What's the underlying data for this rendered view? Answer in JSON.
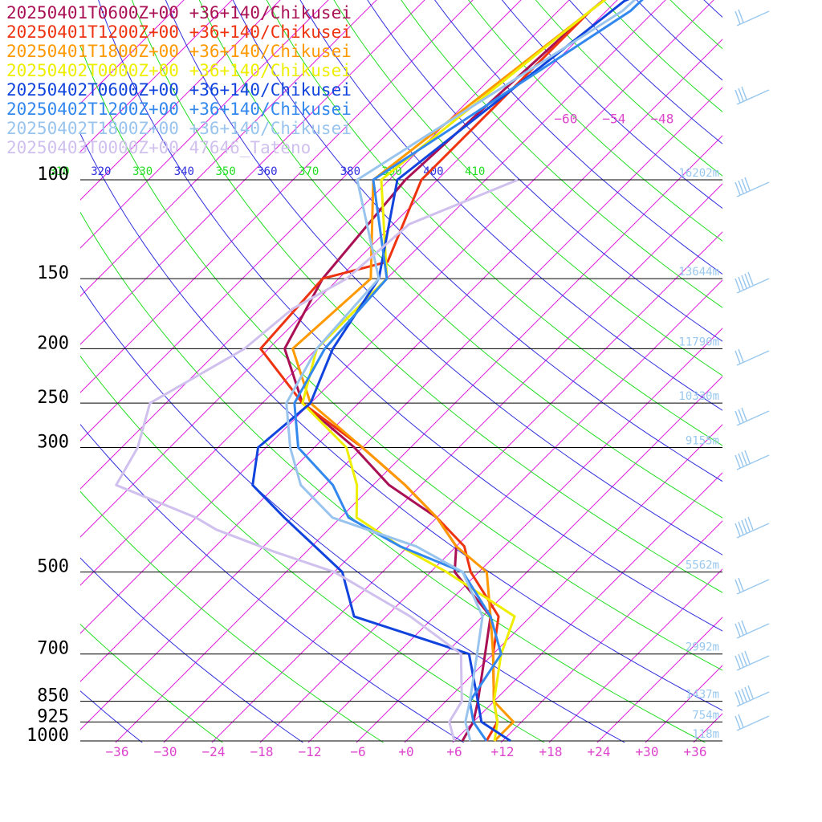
{
  "chart_data": {
    "type": "line",
    "title": "",
    "pressure_levels": [
      100,
      150,
      200,
      250,
      300,
      500,
      700,
      850,
      925,
      1000
    ],
    "temperature_ticks": [
      "−36",
      "−30",
      "−24",
      "−18",
      "−12",
      "−6",
      "+0",
      "+6",
      "+12",
      "+18",
      "+24",
      "+30",
      "+36"
    ],
    "temperature_tick_values": [
      -36,
      -30,
      -24,
      -18,
      -12,
      -6,
      0,
      6,
      12,
      18,
      24,
      30,
      36
    ],
    "upper_temperature_labels": [
      "−60",
      "−54",
      "−48"
    ],
    "theta_labels": [
      "310",
      "320",
      "330",
      "340",
      "350",
      "360",
      "370",
      "380",
      "390",
      "400",
      "410"
    ],
    "height_labels": [
      "16202m",
      "13644m",
      "11790m",
      "10330m",
      "9155m",
      "5562m",
      "2992m",
      "1437m",
      "754m",
      "118m"
    ],
    "height_label_pressures": [
      100,
      150,
      200,
      250,
      300,
      500,
      700,
      850,
      925,
      1000
    ],
    "colors": {
      "isotherm": "#dd22dd",
      "dry_adiabat_blue": "#3030dd",
      "dry_adiabat_green": "#22dd22",
      "isobar": "#000000",
      "height_label": "#9ac8ee",
      "tick_label": "#dd44cc"
    },
    "series": [
      {
        "name": "20250401T0600Z+00 +36+140/Chikusei",
        "color": "#aa1155",
        "points": [
          [
            16,
            -62
          ],
          [
            24,
            -63
          ],
          [
            50,
            -68
          ],
          [
            100,
            -70
          ],
          [
            150,
            -68
          ],
          [
            200,
            -64
          ],
          [
            250,
            -55
          ],
          [
            300,
            -43
          ],
          [
            350,
            -34
          ],
          [
            400,
            -24
          ],
          [
            450,
            -18
          ],
          [
            500,
            -15
          ],
          [
            600,
            -5
          ],
          [
            700,
            -1
          ],
          [
            850,
            4
          ],
          [
            925,
            6
          ],
          [
            1000,
            7
          ]
        ]
      },
      {
        "name": "20250401T1200Z+00 +36+140/Chikusei",
        "color": "#ee3311",
        "points": [
          [
            16,
            -62
          ],
          [
            25,
            -62
          ],
          [
            50,
            -68
          ],
          [
            100,
            -68
          ],
          [
            140,
            -62
          ],
          [
            150,
            -68
          ],
          [
            200,
            -67
          ],
          [
            250,
            -55
          ],
          [
            300,
            -42
          ],
          [
            350,
            -32
          ],
          [
            400,
            -24
          ],
          [
            450,
            -17
          ],
          [
            500,
            -13
          ],
          [
            600,
            -4
          ],
          [
            700,
            0
          ],
          [
            850,
            6
          ],
          [
            925,
            9
          ],
          [
            1000,
            10
          ]
        ]
      },
      {
        "name": "20250401T1800Z+00 +36+140/Chikusei",
        "color": "#ff9900",
        "points": [
          [
            16,
            -62
          ],
          [
            26,
            -62
          ],
          [
            50,
            -68
          ],
          [
            100,
            -74
          ],
          [
            150,
            -62
          ],
          [
            200,
            -63
          ],
          [
            250,
            -54
          ],
          [
            300,
            -42
          ],
          [
            350,
            -32
          ],
          [
            400,
            -24
          ],
          [
            450,
            -18
          ],
          [
            500,
            -11
          ],
          [
            600,
            -5
          ],
          [
            700,
            0
          ],
          [
            850,
            6
          ],
          [
            925,
            11
          ],
          [
            1000,
            11
          ]
        ]
      },
      {
        "name": "20250402T0000Z+00 +36+140/Chikusei",
        "color": "#eeee00",
        "points": [
          [
            16,
            -62
          ],
          [
            26,
            -62
          ],
          [
            50,
            -68
          ],
          [
            100,
            -73
          ],
          [
            150,
            -60
          ],
          [
            200,
            -60
          ],
          [
            250,
            -55
          ],
          [
            300,
            -44
          ],
          [
            350,
            -38
          ],
          [
            400,
            -34
          ],
          [
            450,
            -25
          ],
          [
            500,
            -16
          ],
          [
            600,
            -2
          ],
          [
            700,
            1
          ],
          [
            850,
            6
          ],
          [
            925,
            9
          ],
          [
            1000,
            11
          ]
        ]
      },
      {
        "name": "20250402T0600Z+00 +36+140/Chikusei",
        "color": "#1144dd",
        "points": [
          [
            16,
            -62
          ],
          [
            25,
            -60
          ],
          [
            40,
            -58
          ],
          [
            48,
            -65
          ],
          [
            100,
            -71
          ],
          [
            150,
            -61
          ],
          [
            200,
            -58
          ],
          [
            250,
            -54
          ],
          [
            300,
            -55
          ],
          [
            350,
            -51
          ],
          [
            400,
            -43
          ],
          [
            500,
            -29
          ],
          [
            600,
            -22
          ],
          [
            700,
            -3
          ],
          [
            850,
            4
          ],
          [
            925,
            7
          ],
          [
            1000,
            13
          ]
        ]
      },
      {
        "name": "20250402T1200Z+00 +36+140/Chikusei",
        "color": "#3388ee",
        "points": [
          [
            16,
            -62
          ],
          [
            27,
            -62
          ],
          [
            50,
            -63
          ],
          [
            100,
            -74
          ],
          [
            150,
            -60
          ],
          [
            200,
            -59
          ],
          [
            250,
            -56
          ],
          [
            300,
            -50
          ],
          [
            350,
            -41
          ],
          [
            400,
            -35
          ],
          [
            450,
            -25
          ],
          [
            500,
            -14
          ],
          [
            600,
            -5
          ],
          [
            700,
            1
          ],
          [
            850,
            3
          ],
          [
            925,
            6
          ],
          [
            1000,
            10
          ]
        ]
      },
      {
        "name": "20250402T1800Z+00 +36+140/Chikusei",
        "color": "#99c4ee",
        "points": [
          [
            16,
            -62
          ],
          [
            27,
            -62
          ],
          [
            50,
            -64
          ],
          [
            100,
            -76
          ],
          [
            150,
            -61
          ],
          [
            200,
            -60
          ],
          [
            250,
            -57
          ],
          [
            300,
            -51
          ],
          [
            350,
            -45
          ],
          [
            400,
            -37
          ],
          [
            450,
            -23
          ],
          [
            500,
            -14
          ],
          [
            600,
            -6
          ],
          [
            700,
            -2
          ],
          [
            850,
            3
          ],
          [
            925,
            5
          ],
          [
            1000,
            8
          ]
        ]
      },
      {
        "name": "20250403T0000Z+00 47646_Tateno",
        "color": "#d0c0ee",
        "points": [
          [
            100,
            -56
          ],
          [
            120,
            -64
          ],
          [
            150,
            -65
          ],
          [
            170,
            -68
          ],
          [
            200,
            -69
          ],
          [
            250,
            -74
          ],
          [
            300,
            -70
          ],
          [
            350,
            -68
          ],
          [
            400,
            -54
          ],
          [
            420,
            -50
          ],
          [
            460,
            -40
          ],
          [
            500,
            -30
          ],
          [
            600,
            -15
          ],
          [
            700,
            -4
          ],
          [
            850,
            2
          ],
          [
            925,
            3
          ],
          [
            1000,
            6
          ]
        ]
      }
    ]
  }
}
